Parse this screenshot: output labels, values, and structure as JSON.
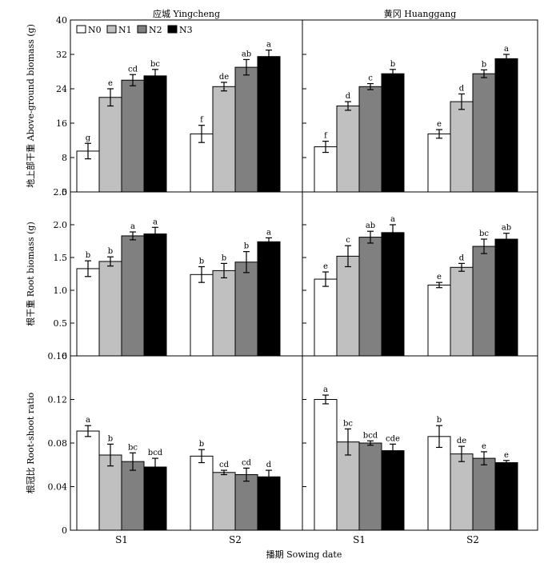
{
  "chart_data": {
    "type": "bar",
    "categories": [
      "S1",
      "S2"
    ],
    "legend": [
      "N0",
      "N1",
      "N2",
      "N3"
    ],
    "legend_placement": "top-left",
    "series_colors": [
      "#ffffff",
      "#c0c0c0",
      "#808080",
      "#000000"
    ],
    "xlabel": "播期 Sowing date",
    "grid": false,
    "columns": [
      {
        "title": "应城 Yingcheng"
      },
      {
        "title": "黄冈 Huanggang"
      }
    ],
    "rows": [
      {
        "ylabel": "地上部干重 Above-ground biomass (g)",
        "ylim": [
          0,
          40
        ],
        "yticks": [
          "0",
          "8",
          "16",
          "24",
          "32",
          "40"
        ],
        "panels": [
          {
            "location": "应城 Yingcheng",
            "values": [
              [
                9.5,
                22.0,
                26.0,
                27.0
              ],
              [
                13.5,
                24.5,
                29.0,
                31.5
              ]
            ],
            "errors": [
              [
                1.8,
                2.0,
                1.3,
                1.5
              ],
              [
                2.0,
                1.0,
                1.8,
                1.5
              ]
            ],
            "letters": [
              [
                "g",
                "e",
                "cd",
                "bc"
              ],
              [
                "f",
                "de",
                "ab",
                "a"
              ]
            ]
          },
          {
            "location": "黄冈 Huanggang",
            "values": [
              [
                10.5,
                20.0,
                24.5,
                27.5
              ],
              [
                13.5,
                21.0,
                27.5,
                31.0
              ]
            ],
            "errors": [
              [
                1.3,
                1.0,
                0.7,
                1.0
              ],
              [
                1.0,
                1.8,
                0.9,
                1.0
              ]
            ],
            "letters": [
              [
                "f",
                "d",
                "c",
                "b"
              ],
              [
                "e",
                "d",
                "b",
                "a"
              ]
            ]
          }
        ]
      },
      {
        "ylabel": "根干重 Root biomass (g)",
        "ylim": [
          0,
          2.5
        ],
        "yticks": [
          "0",
          "0.5",
          "1.0",
          "1.5",
          "2.0",
          "2.5"
        ],
        "panels": [
          {
            "location": "应城 Yingcheng",
            "values": [
              [
                1.33,
                1.44,
                1.83,
                1.86
              ],
              [
                1.24,
                1.3,
                1.43,
                1.74
              ]
            ],
            "errors": [
              [
                0.12,
                0.07,
                0.06,
                0.1
              ],
              [
                0.12,
                0.11,
                0.16,
                0.06
              ]
            ],
            "letters": [
              [
                "b",
                "b",
                "a",
                "a"
              ],
              [
                "b",
                "b",
                "b",
                "a"
              ]
            ]
          },
          {
            "location": "黄冈 Huanggang",
            "values": [
              [
                1.17,
                1.52,
                1.81,
                1.88
              ],
              [
                1.08,
                1.35,
                1.67,
                1.78
              ]
            ],
            "errors": [
              [
                0.11,
                0.16,
                0.09,
                0.12
              ],
              [
                0.04,
                0.06,
                0.11,
                0.09
              ]
            ],
            "letters": [
              [
                "e",
                "c",
                "ab",
                "a"
              ],
              [
                "e",
                "d",
                "bc",
                "ab"
              ]
            ]
          }
        ]
      },
      {
        "ylabel": "根冠比 Root-shoot ratio",
        "ylim": [
          0,
          0.16
        ],
        "yticks": [
          "0",
          "0.04",
          "0.08",
          "0.12",
          "0.16"
        ],
        "panels": [
          {
            "location": "应城 Yingcheng",
            "values": [
              [
                0.091,
                0.069,
                0.063,
                0.058
              ],
              [
                0.068,
                0.053,
                0.051,
                0.049
              ]
            ],
            "errors": [
              [
                0.005,
                0.01,
                0.008,
                0.008
              ],
              [
                0.006,
                0.002,
                0.006,
                0.006
              ]
            ],
            "letters": [
              [
                "a",
                "b",
                "bc",
                "bcd"
              ],
              [
                "b",
                "cd",
                "cd",
                "d"
              ]
            ]
          },
          {
            "location": "黄冈 Huanggang",
            "values": [
              [
                0.12,
                0.081,
                0.08,
                0.073
              ],
              [
                0.086,
                0.07,
                0.066,
                0.062
              ]
            ],
            "errors": [
              [
                0.004,
                0.012,
                0.002,
                0.006
              ],
              [
                0.01,
                0.007,
                0.006,
                0.002
              ]
            ],
            "letters": [
              [
                "a",
                "bc",
                "bcd",
                "cde"
              ],
              [
                "b",
                "de",
                "e",
                "e"
              ]
            ]
          }
        ]
      }
    ]
  }
}
